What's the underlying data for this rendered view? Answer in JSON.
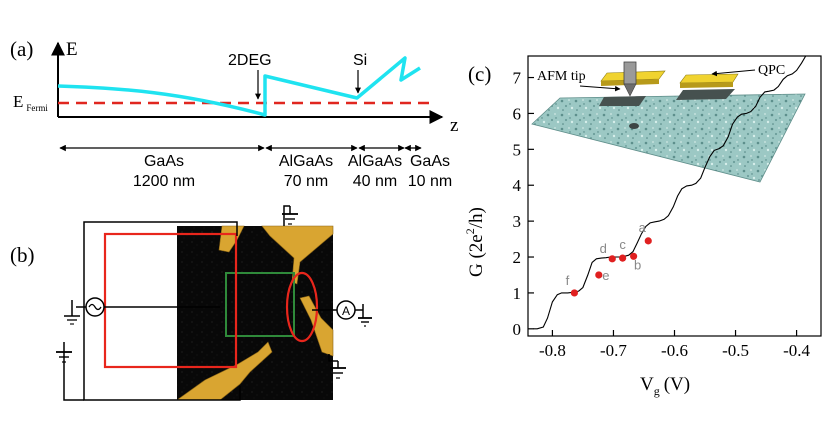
{
  "panel_a": {
    "label": "(a)",
    "y_axis_label": "E",
    "x_axis_label": "z",
    "fermi_label_main": "E",
    "fermi_label_sub": "Fermi",
    "annotations": {
      "twodeg": "2DEG",
      "si": "Si"
    },
    "layers": [
      {
        "material": "GaAs",
        "thickness": "1200 nm"
      },
      {
        "material": "AlGaAs",
        "thickness": "70 nm"
      },
      {
        "material": "AlGaAs",
        "thickness": "40 nm"
      },
      {
        "material": "GaAs",
        "thickness": "10 nm"
      }
    ],
    "colors": {
      "band": "#1fe3f0",
      "fermi": "#e0261f"
    }
  },
  "panel_b": {
    "label": "(b)",
    "ammeter_symbol": "A",
    "colors": {
      "gate_box": "#e8261c",
      "scan_box": "#2f8a3a",
      "qpc_ellipse": "#e8261c",
      "metal": "#d9a531"
    }
  },
  "panel_c": {
    "label": "(c)",
    "inset_labels": {
      "tip": "AFM tip",
      "qpc": "QPC"
    },
    "point_color": "#e02020",
    "chart_data": {
      "type": "line",
      "xlabel_main": "V",
      "xlabel_sub": "g",
      "xlabel_unit": "(V)",
      "ylabel_pre": "G (2e",
      "ylabel_sup": "2",
      "ylabel_post": "/h)",
      "xlim": [
        -0.84,
        -0.36
      ],
      "ylim": [
        -0.2,
        7.6
      ],
      "xticks": [
        -0.8,
        -0.7,
        -0.6,
        -0.5,
        -0.4
      ],
      "xtick_labels": [
        "-0.8",
        "-0.7",
        "-0.6",
        "-0.5",
        "-0.4"
      ],
      "yticks": [
        0,
        1,
        2,
        3,
        4,
        5,
        6,
        7
      ],
      "ytick_labels": [
        "0",
        "1",
        "2",
        "3",
        "4",
        "5",
        "6",
        "7"
      ],
      "curve": {
        "x": [
          -0.831,
          -0.825,
          -0.815,
          -0.808,
          -0.8,
          -0.792,
          -0.785,
          -0.775,
          -0.765,
          -0.757,
          -0.75,
          -0.742,
          -0.735,
          -0.728,
          -0.72,
          -0.712,
          -0.705,
          -0.697,
          -0.69,
          -0.682,
          -0.675,
          -0.668,
          -0.661,
          -0.654,
          -0.647,
          -0.64,
          -0.632,
          -0.625,
          -0.617,
          -0.61,
          -0.602,
          -0.595,
          -0.588,
          -0.58,
          -0.572,
          -0.565,
          -0.557,
          -0.55,
          -0.542,
          -0.535,
          -0.527,
          -0.52,
          -0.512,
          -0.505,
          -0.497,
          -0.49,
          -0.482,
          -0.475,
          -0.467,
          -0.46,
          -0.452,
          -0.445,
          -0.437,
          -0.43,
          -0.422,
          -0.415,
          -0.407,
          -0.4,
          -0.392,
          -0.385,
          -0.378,
          -0.37
        ],
        "y": [
          0.0,
          0.0,
          0.05,
          0.3,
          0.75,
          0.95,
          1.0,
          1.0,
          1.02,
          1.05,
          1.15,
          1.5,
          1.85,
          1.95,
          1.97,
          1.98,
          2.0,
          2.0,
          2.0,
          2.02,
          2.05,
          2.15,
          2.4,
          2.65,
          2.85,
          2.95,
          2.98,
          3.0,
          3.05,
          3.15,
          3.4,
          3.7,
          3.9,
          3.98,
          4.0,
          4.05,
          4.2,
          4.5,
          4.8,
          4.97,
          5.02,
          5.1,
          5.35,
          5.7,
          5.9,
          5.98,
          6.0,
          6.05,
          6.2,
          6.45,
          6.6,
          6.62,
          6.65,
          6.75,
          6.95,
          7.05,
          7.1,
          7.2,
          7.4,
          7.7,
          8.1,
          8.5
        ]
      },
      "points": [
        {
          "label": "f",
          "x": -0.764,
          "y": 1.0
        },
        {
          "label": "e",
          "x": -0.724,
          "y": 1.5
        },
        {
          "label": "d",
          "x": -0.702,
          "y": 1.95
        },
        {
          "label": "c",
          "x": -0.685,
          "y": 1.97
        },
        {
          "label": "b",
          "x": -0.667,
          "y": 2.02
        },
        {
          "label": "a",
          "x": -0.643,
          "y": 2.45
        }
      ]
    }
  }
}
